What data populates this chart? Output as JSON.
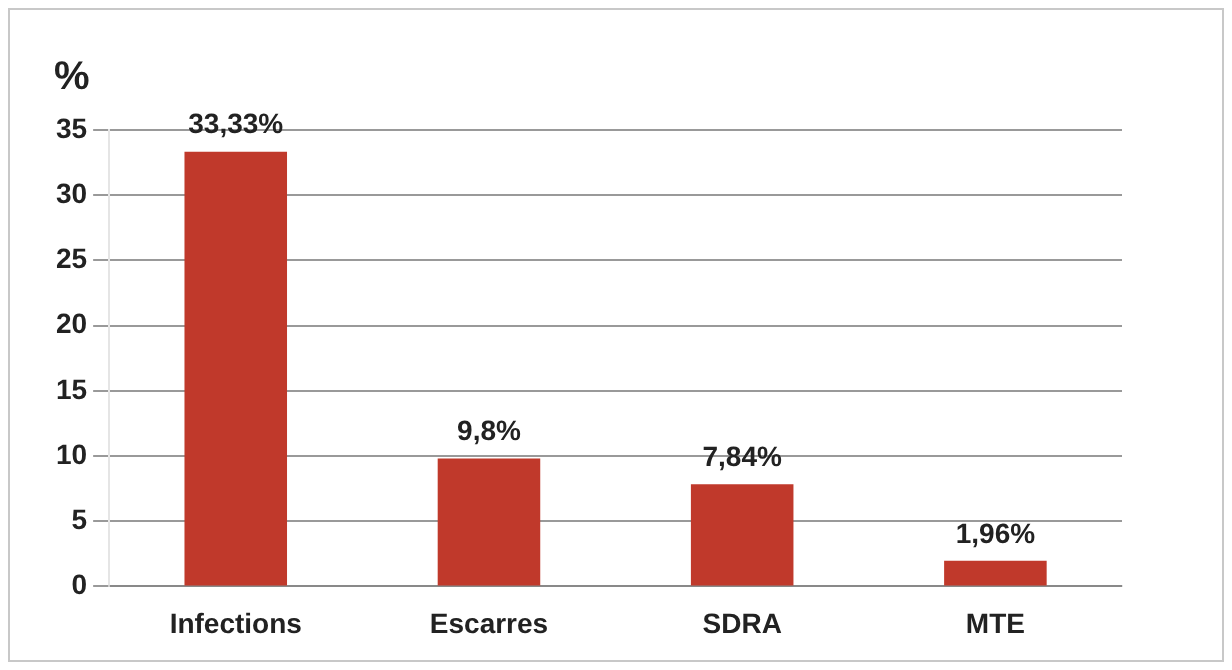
{
  "chart_data": {
    "type": "bar",
    "ylabel": "%",
    "categories": [
      "Infections",
      "Escarres",
      "SDRA",
      "MTE"
    ],
    "values": [
      33.33,
      9.8,
      7.84,
      1.96
    ],
    "value_labels": [
      "33,33%",
      "9,8%",
      "7,84%",
      "1,96%"
    ],
    "color": "#c0392b",
    "ylim": [
      0,
      35
    ],
    "yticks": [
      0,
      5,
      10,
      15,
      20,
      25,
      30,
      35
    ],
    "grid": "y",
    "legend": false
  }
}
